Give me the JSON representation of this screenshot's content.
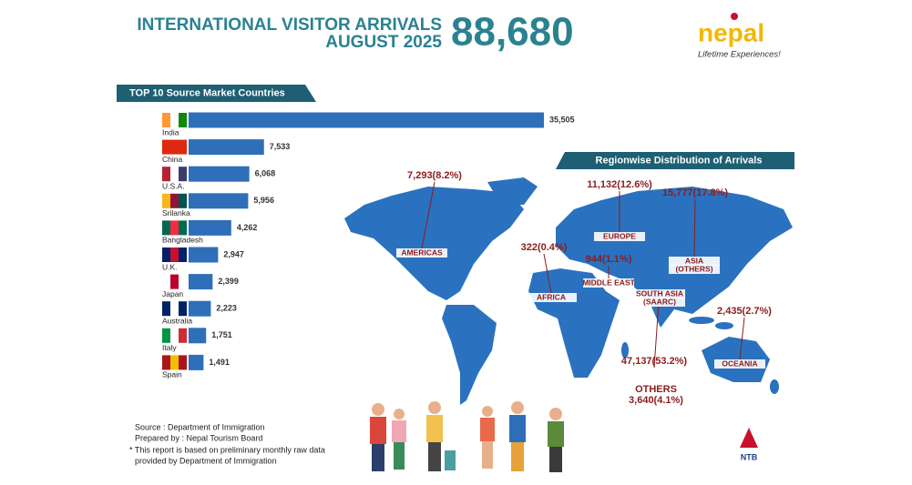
{
  "header": {
    "title_line1": "INTERNATIONAL VISITOR ARRIVALS",
    "title_line2": "AUGUST 2025",
    "total": "88,680"
  },
  "logo": {
    "name": "nepal",
    "tagline": "Lifetime Experiences!"
  },
  "chart_data": {
    "type": "bar",
    "orientation": "horizontal",
    "title": "TOP 10 Source Market Countries",
    "color": "#2f6fba",
    "categories": [
      "India",
      "China",
      "U.S.A.",
      "Srilanka",
      "Bangladesh",
      "U.K.",
      "Japan",
      "Australia",
      "Italy",
      "Spain"
    ],
    "values": [
      35505,
      7533,
      6068,
      5956,
      4262,
      2947,
      2399,
      2223,
      1751,
      1491
    ],
    "value_labels": [
      "35,505",
      "7,533",
      "6,068",
      "5,956",
      "4,262",
      "2,947",
      "2,399",
      "2,223",
      "1,751",
      "1,491"
    ]
  },
  "regions": {
    "title": "Regionwise Distribution of Arrivals",
    "items": [
      {
        "name": [
          "AMERICAS"
        ],
        "figure": "7,293(8.2%)"
      },
      {
        "name": [
          "EUROPE"
        ],
        "figure": "11,132(12.6%)"
      },
      {
        "name": [
          "ASIA",
          "(OTHERS)"
        ],
        "figure": "15,777(17.8%)"
      },
      {
        "name": [
          "AFRICA"
        ],
        "figure": "322(0.4%)"
      },
      {
        "name": [
          "MIDDLE EAST"
        ],
        "figure": "944(1.1%)"
      },
      {
        "name": [
          "SOUTH ASIA",
          "(SAARC)"
        ],
        "figure": "47,137(53.2%)"
      },
      {
        "name": [
          "OCEANIA"
        ],
        "figure": "2,435(2.7%)"
      },
      {
        "name": [
          "OTHERS"
        ],
        "figure": "3,640(4.1%)"
      }
    ]
  },
  "footer": {
    "lines": [
      "Source : Department of Immigration",
      "Prepared by : Nepal Tourism Board",
      "* This report is based on preliminary monthly raw data",
      "provided by Department of Immigration"
    ]
  },
  "ntb": "NTB"
}
